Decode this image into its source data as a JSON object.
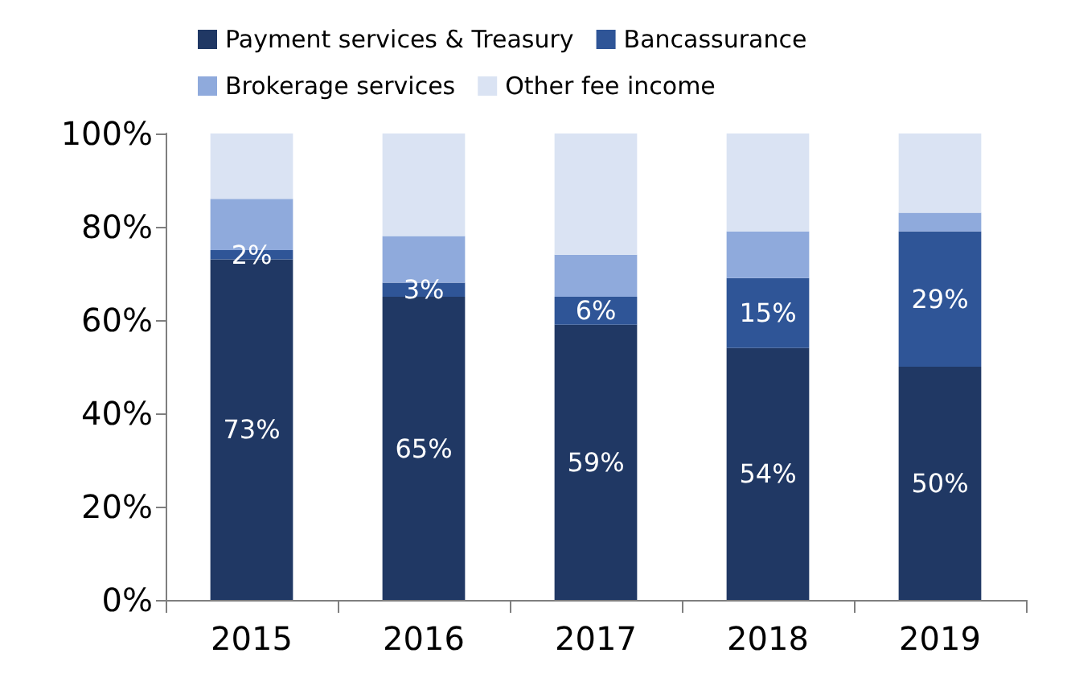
{
  "chart_data": {
    "type": "bar",
    "stacked": true,
    "categories": [
      "2015",
      "2016",
      "2017",
      "2018",
      "2019"
    ],
    "series": [
      {
        "name": "Payment services & Treasury",
        "color": "#203864",
        "values": [
          73,
          65,
          59,
          54,
          50
        ],
        "value_labels": [
          "73%",
          "65%",
          "59%",
          "54%",
          "50%"
        ]
      },
      {
        "name": "Bancassurance",
        "color": "#2f5597",
        "values": [
          2,
          3,
          6,
          15,
          29
        ],
        "value_labels": [
          "2%",
          "3%",
          "6%",
          "15%",
          "29%"
        ]
      },
      {
        "name": "Brokerage services",
        "color": "#8faadc",
        "values": [
          11,
          10,
          9,
          10,
          4
        ]
      },
      {
        "name": "Other fee income",
        "color": "#dae3f3",
        "values": [
          14,
          22,
          26,
          21,
          17
        ]
      }
    ],
    "ylim": [
      0,
      100
    ],
    "yticks": [
      {
        "value": 0,
        "label": "0%"
      },
      {
        "value": 20,
        "label": "20%"
      },
      {
        "value": 40,
        "label": "40%"
      },
      {
        "value": 60,
        "label": "60%"
      },
      {
        "value": 80,
        "label": "80%"
      },
      {
        "value": 100,
        "label": "100%"
      }
    ],
    "grid": false,
    "legend": "top"
  }
}
